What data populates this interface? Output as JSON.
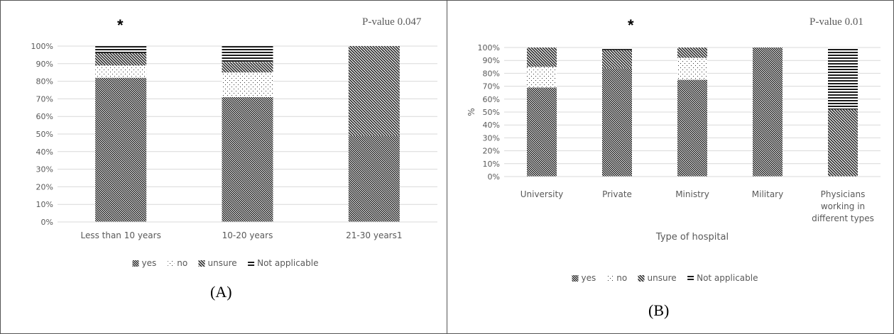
{
  "panels": [
    {
      "label": "(A)",
      "significance_marker": "*",
      "p_value": "P-value 0.047"
    },
    {
      "label": "(B)",
      "significance_marker": "*",
      "p_value": "P-value 0.01"
    }
  ],
  "chart_data": [
    {
      "type": "bar",
      "stacked": true,
      "categories": [
        "Less than 10 years",
        "10-20 years",
        "21-30 years1"
      ],
      "series": [
        {
          "name": "yes",
          "values": [
            82,
            71,
            49
          ]
        },
        {
          "name": "no",
          "values": [
            7,
            14,
            0
          ]
        },
        {
          "name": "unsure",
          "values": [
            7,
            6,
            51
          ]
        },
        {
          "name": "Not applicable",
          "values": [
            4,
            9,
            0
          ]
        }
      ],
      "y_ticks": [
        "0%",
        "10%",
        "20%",
        "30%",
        "40%",
        "50%",
        "60%",
        "70%",
        "80%",
        "90%",
        "100%"
      ],
      "ylim": [
        0,
        100
      ],
      "xlabel": "",
      "ylabel": "",
      "legend_position": "bottom",
      "grid": true
    },
    {
      "type": "bar",
      "stacked": true,
      "categories": [
        "University",
        "Private",
        "Ministry",
        "Military",
        "Physicians working in different types"
      ],
      "series": [
        {
          "name": "yes",
          "values": [
            69,
            84,
            75,
            100,
            0
          ]
        },
        {
          "name": "no",
          "values": [
            16,
            0,
            17,
            0,
            0
          ]
        },
        {
          "name": "unsure",
          "values": [
            15,
            14,
            8,
            0,
            52
          ]
        },
        {
          "name": "Not applicable",
          "values": [
            0,
            2,
            0,
            0,
            48
          ]
        }
      ],
      "y_ticks": [
        "0%",
        "10%",
        "20%",
        "30%",
        "40%",
        "50%",
        "60%",
        "70%",
        "80%",
        "90%",
        "100%"
      ],
      "ylim": [
        0,
        100
      ],
      "xlabel": "Type of hospital",
      "ylabel": "%",
      "legend_position": "bottom",
      "grid": true
    }
  ]
}
